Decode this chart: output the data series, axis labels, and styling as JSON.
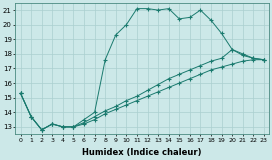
{
  "title": "",
  "xlabel": "Humidex (Indice chaleur)",
  "bg_color": "#cce8e8",
  "line_color": "#1a7a6e",
  "grid_color": "#aacfcf",
  "xlim": [
    -0.5,
    23.5
  ],
  "ylim": [
    12.5,
    21.5
  ],
  "yticks": [
    13,
    14,
    15,
    16,
    17,
    18,
    19,
    20,
    21
  ],
  "xticks": [
    0,
    1,
    2,
    3,
    4,
    5,
    6,
    7,
    8,
    9,
    10,
    11,
    12,
    13,
    14,
    15,
    16,
    17,
    18,
    19,
    20,
    21,
    22,
    23
  ],
  "series": [
    {
      "x": [
        0,
        1,
        2,
        3,
        4,
        5,
        6,
        7,
        8,
        9,
        10,
        11,
        12,
        13,
        14,
        15,
        16,
        17,
        18,
        19,
        20,
        21,
        22,
        23
      ],
      "y": [
        15.3,
        13.7,
        12.8,
        13.2,
        13.0,
        13.0,
        13.5,
        14.0,
        17.6,
        19.3,
        20.0,
        21.1,
        21.1,
        21.0,
        21.1,
        20.4,
        20.5,
        21.0,
        20.3,
        19.4,
        18.3,
        18.0,
        17.7,
        17.6
      ]
    },
    {
      "x": [
        0,
        1,
        2,
        3,
        4,
        5,
        6,
        7,
        8,
        9,
        10,
        11,
        12,
        13,
        14,
        15,
        16,
        17,
        18,
        19,
        20,
        21,
        22,
        23
      ],
      "y": [
        15.3,
        13.7,
        12.8,
        13.2,
        13.0,
        13.0,
        13.3,
        13.7,
        14.1,
        14.4,
        14.8,
        15.1,
        15.5,
        15.9,
        16.3,
        16.6,
        16.9,
        17.2,
        17.5,
        17.7,
        18.3,
        17.9,
        17.7,
        17.6
      ]
    },
    {
      "x": [
        0,
        1,
        2,
        3,
        4,
        5,
        6,
        7,
        8,
        9,
        10,
        11,
        12,
        13,
        14,
        15,
        16,
        17,
        18,
        19,
        20,
        21,
        22,
        23
      ],
      "y": [
        15.3,
        13.7,
        12.8,
        13.2,
        13.0,
        13.0,
        13.2,
        13.5,
        13.9,
        14.2,
        14.5,
        14.8,
        15.1,
        15.4,
        15.7,
        16.0,
        16.3,
        16.6,
        16.9,
        17.1,
        17.3,
        17.5,
        17.6,
        17.6
      ]
    }
  ]
}
